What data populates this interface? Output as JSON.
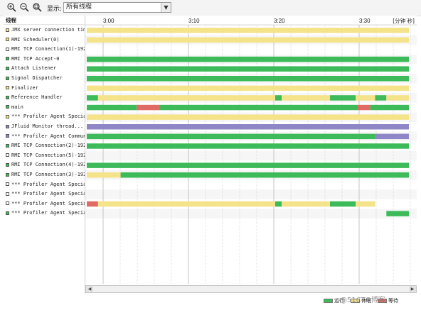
{
  "toolbar": {
    "buttons": [
      {
        "name": "zoom-in-button",
        "icon": "zoom-in-icon"
      },
      {
        "name": "zoom-out-button",
        "icon": "zoom-out-icon"
      },
      {
        "name": "zoom-fit-button",
        "icon": "zoom-fit-icon"
      }
    ],
    "show_label": "显示:",
    "show_value": "所有线程"
  },
  "thread_panel": {
    "header": "线程"
  },
  "timeline_header": {
    "ticks": [
      "3:00",
      "3:10",
      "3:20",
      "3:30"
    ],
    "unit_label": "[分钟 秒]"
  },
  "colors": {
    "running": "#3dbb5a",
    "waiting": "#f5e38a",
    "blocked": "#e06a64",
    "io": "#8e86c6",
    "grid": "#c4c4c4"
  },
  "threads": [
    {
      "name": "JMX server connection tim...",
      "swatch": "#f5e38a",
      "segments": [
        [
          0,
          1,
          "waiting"
        ]
      ]
    },
    {
      "name": "RMI Scheduler(0)",
      "swatch": "#f5e38a",
      "segments": [
        [
          0,
          1,
          "waiting"
        ]
      ]
    },
    {
      "name": "RMI TCP Connection(1)-192...",
      "swatch": "#ffffff",
      "segments": []
    },
    {
      "name": "RMI TCP Accept-0",
      "swatch": "#3dbb5a",
      "segments": [
        [
          0,
          1,
          "running"
        ]
      ]
    },
    {
      "name": "Attach Listener",
      "swatch": "#3dbb5a",
      "segments": [
        [
          0,
          1,
          "running"
        ]
      ]
    },
    {
      "name": "Signal Dispatcher",
      "swatch": "#3dbb5a",
      "segments": [
        [
          0,
          1,
          "running"
        ]
      ]
    },
    {
      "name": "Finalizer",
      "swatch": "#f5e38a",
      "segments": [
        [
          0,
          1,
          "waiting"
        ]
      ]
    },
    {
      "name": "Reference Handler",
      "swatch": "#3dbb5a",
      "segments": [
        [
          0,
          0.035,
          "running"
        ],
        [
          0.035,
          0.585,
          "waiting"
        ],
        [
          0.585,
          0.605,
          "running"
        ],
        [
          0.605,
          0.755,
          "waiting"
        ],
        [
          0.755,
          0.835,
          "running"
        ],
        [
          0.835,
          0.895,
          "waiting"
        ],
        [
          0.895,
          0.93,
          "running"
        ],
        [
          0.93,
          1,
          "waiting"
        ]
      ]
    },
    {
      "name": "main",
      "swatch": "#3dbb5a",
      "segments": [
        [
          0,
          0.155,
          "running"
        ],
        [
          0.155,
          0.225,
          "blocked"
        ],
        [
          0.225,
          0.84,
          "running"
        ],
        [
          0.84,
          0.88,
          "blocked"
        ],
        [
          0.88,
          1,
          "running"
        ]
      ]
    },
    {
      "name": "*** Profiler Agent Specia...",
      "swatch": "#f5e38a",
      "segments": [
        [
          0,
          1,
          "waiting"
        ]
      ]
    },
    {
      "name": "JFluid Monitor thread...",
      "swatch": "#8e86c6",
      "segments": [
        [
          0,
          1,
          "io"
        ]
      ]
    },
    {
      "name": "*** Profiler Agent Commun...",
      "swatch": "#8e86c6",
      "segments": [
        [
          0,
          0.895,
          "running"
        ],
        [
          0.895,
          1,
          "io"
        ]
      ]
    },
    {
      "name": "RMI TCP Connection(2)-192...",
      "swatch": "#3dbb5a",
      "segments": [
        [
          0,
          1,
          "running"
        ]
      ]
    },
    {
      "name": "RMI TCP Connection(5)-192...",
      "swatch": "#ffffff",
      "segments": []
    },
    {
      "name": "RMI TCP Connection(4)-192...",
      "swatch": "#3dbb5a",
      "segments": [
        [
          0,
          1,
          "running"
        ]
      ]
    },
    {
      "name": "RMI TCP Connection(3)-192...",
      "swatch": "#3dbb5a",
      "segments": [
        [
          0,
          0.105,
          "waiting"
        ],
        [
          0.105,
          1,
          "running"
        ]
      ]
    },
    {
      "name": "*** Profiler Agent Specia...",
      "swatch": "#ffffff",
      "segments": []
    },
    {
      "name": "*** Profiler Agent Specia...",
      "swatch": "#ffffff",
      "segments": []
    },
    {
      "name": "*** Profiler Agent Specia...",
      "swatch": "#ffffff",
      "segments": [
        [
          0,
          0.035,
          "blocked"
        ],
        [
          0.035,
          0.585,
          "waiting"
        ],
        [
          0.585,
          0.605,
          "running"
        ],
        [
          0.605,
          0.755,
          "waiting"
        ],
        [
          0.755,
          0.835,
          "running"
        ],
        [
          0.835,
          0.895,
          "waiting"
        ]
      ]
    },
    {
      "name": "*** Profiler Agent Specia...",
      "swatch": "#3dbb5a",
      "segments": [
        [
          0.93,
          1,
          "running"
        ]
      ]
    }
  ],
  "legend": [
    {
      "label": "运行",
      "color": "#3dbb5a"
    },
    {
      "label": "休眠",
      "color": "#f5e38a"
    },
    {
      "label": "等待",
      "color": "#e06a64"
    }
  ],
  "watermark": "@51CTO博客"
}
